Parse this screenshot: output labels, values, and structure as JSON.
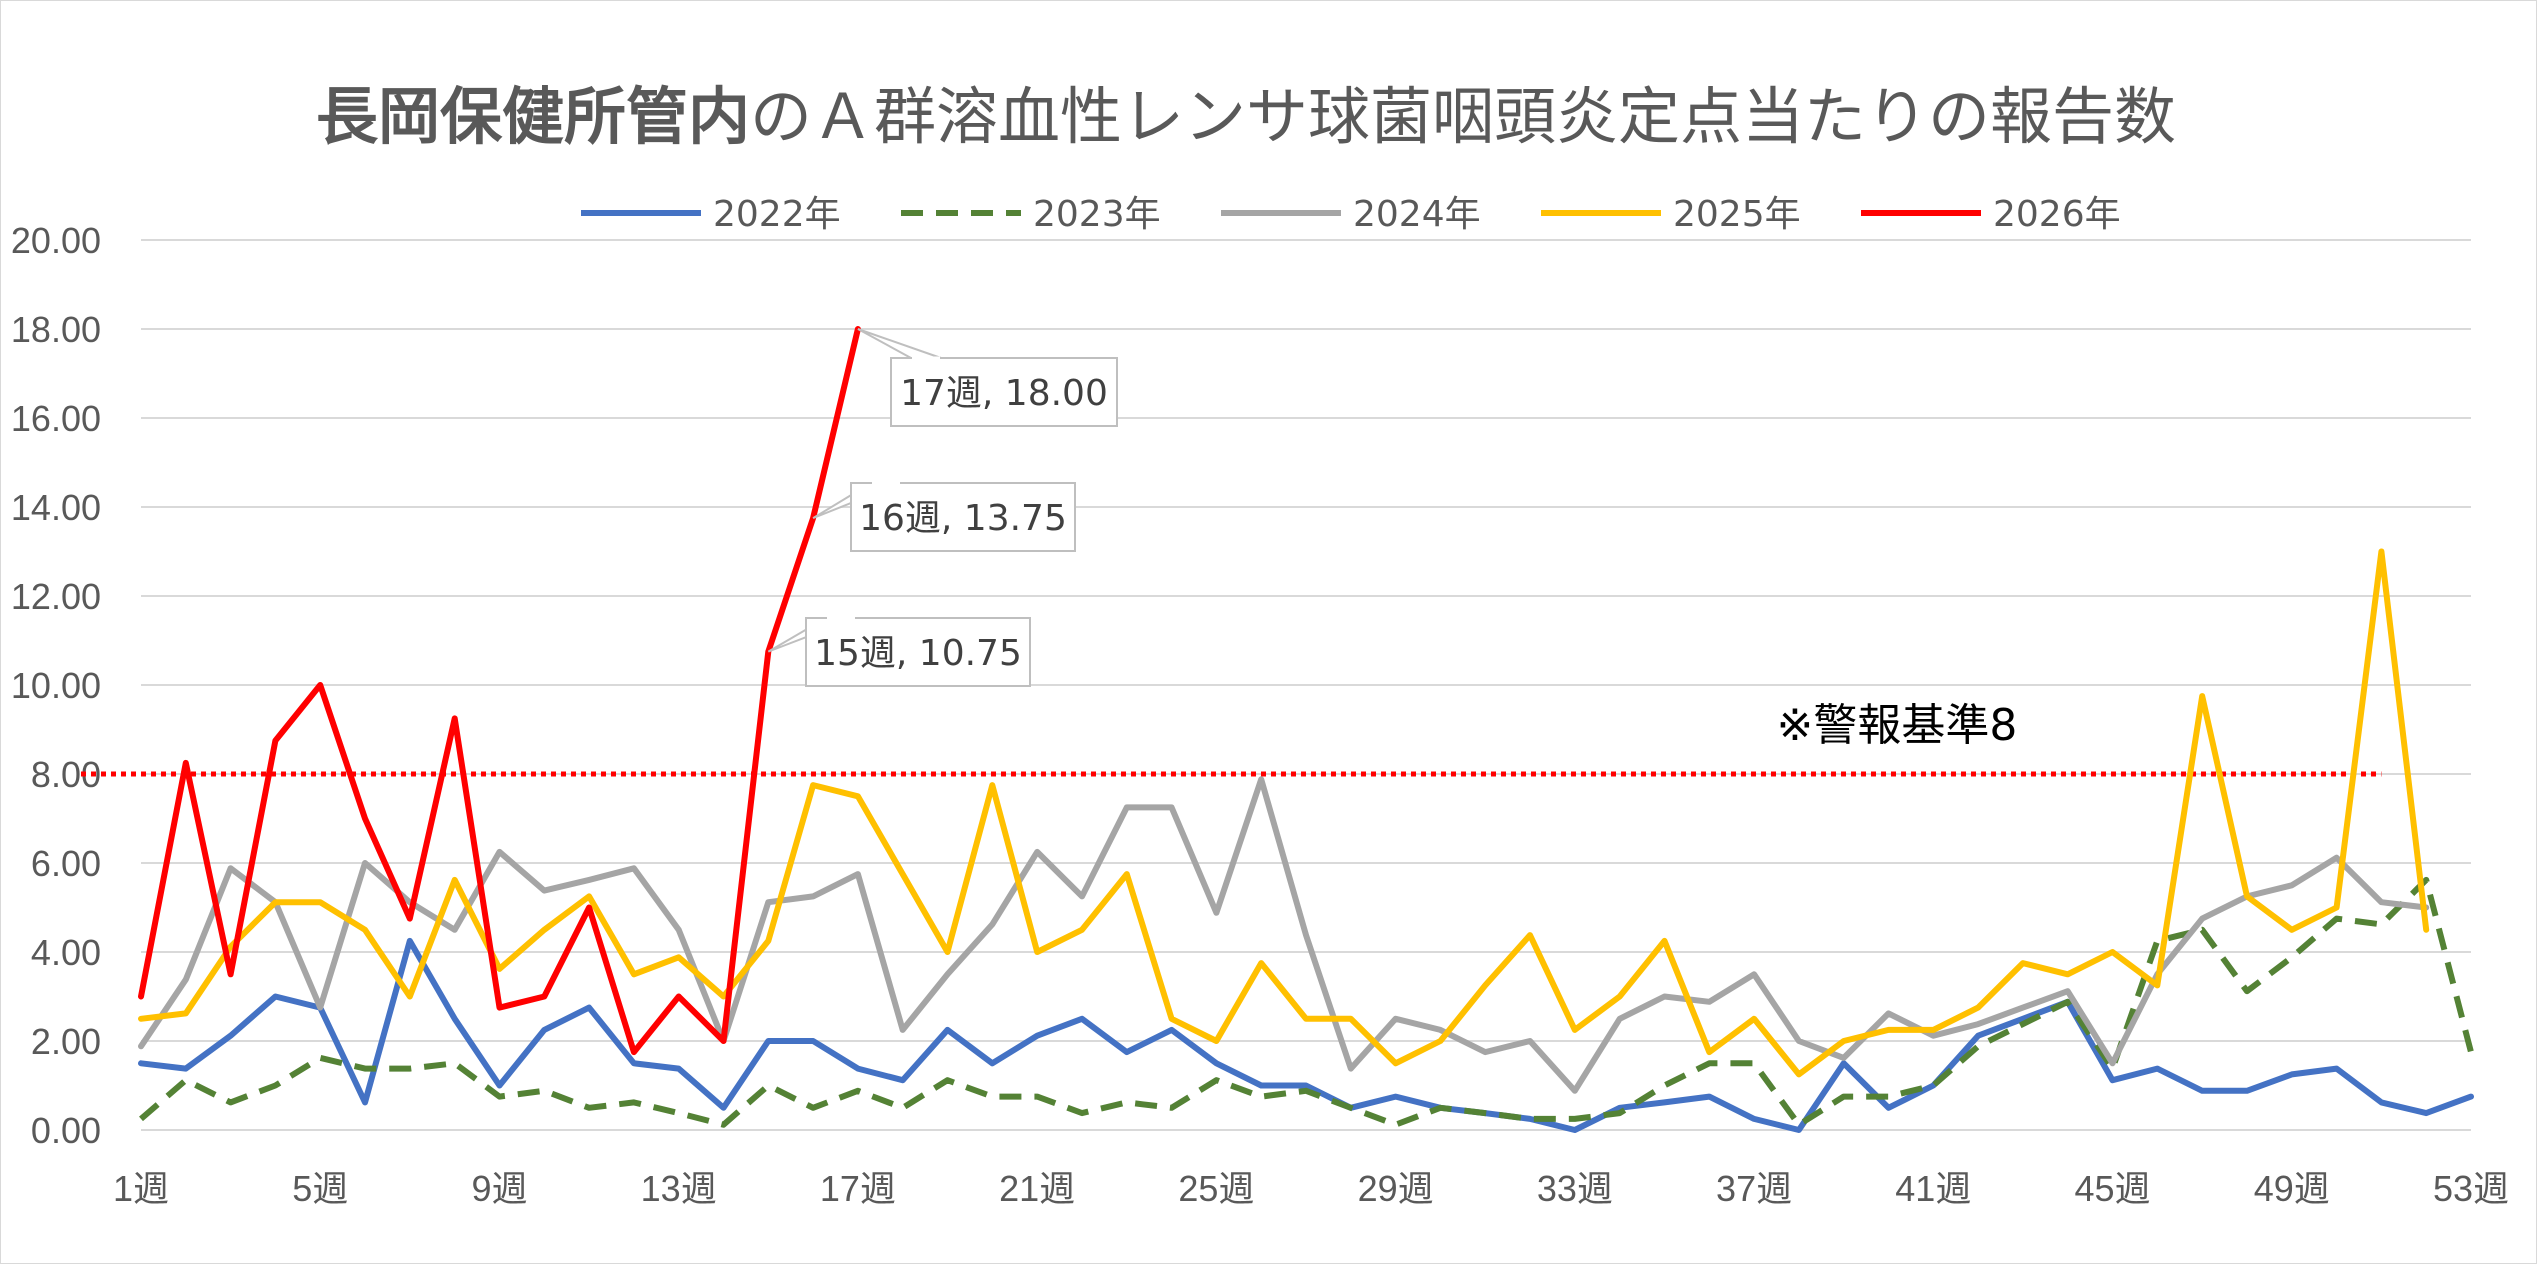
{
  "chart_data": {
    "type": "line",
    "title_bold": "長岡保健所管内",
    "title_rest": "のＡ群溶血性レンサ球菌咽頭炎定点当たりの報告数",
    "xlabel": "",
    "ylabel": "",
    "ylim": [
      0,
      20
    ],
    "yticks": [
      "0.00",
      "2.00",
      "4.00",
      "6.00",
      "8.00",
      "10.00",
      "12.00",
      "14.00",
      "16.00",
      "18.00",
      "20.00"
    ],
    "xtick_labels": [
      "1週",
      "5週",
      "9週",
      "13週",
      "17週",
      "21週",
      "25週",
      "29週",
      "33週",
      "37週",
      "41週",
      "45週",
      "49週",
      "53週"
    ],
    "xtick_weeks": [
      1,
      5,
      9,
      13,
      17,
      21,
      25,
      29,
      33,
      37,
      41,
      45,
      49,
      53
    ],
    "xlim": [
      1,
      53
    ],
    "grid": true,
    "legend_position": "top",
    "threshold": {
      "value": 8,
      "from_week": 1,
      "to_week": 51,
      "color": "#ff0000",
      "label": "※警報基準8",
      "label_week": 37.5,
      "label_y": 9.1
    },
    "series": [
      {
        "name": "2022年",
        "color": "#4472c4",
        "dash": "solid",
        "values": [
          1.5,
          1.38,
          2.12,
          3.0,
          2.75,
          0.62,
          4.25,
          2.5,
          1.0,
          2.25,
          2.75,
          1.5,
          1.38,
          0.5,
          2.0,
          2.0,
          1.38,
          1.12,
          2.25,
          1.5,
          2.12,
          2.5,
          1.75,
          2.25,
          1.5,
          1.0,
          1.0,
          0.5,
          0.75,
          0.5,
          0.38,
          0.25,
          0.0,
          0.5,
          0.62,
          0.75,
          0.25,
          0.0,
          1.5,
          0.5,
          1.0,
          2.12,
          2.5,
          2.88,
          1.12,
          1.38,
          0.88,
          0.88,
          1.25,
          1.38,
          0.62,
          0.38,
          0.75
        ]
      },
      {
        "name": "2023年",
        "color": "#548235",
        "dash": "dashed",
        "values": [
          0.25,
          1.12,
          0.62,
          1.0,
          1.62,
          1.38,
          1.38,
          1.5,
          0.75,
          0.88,
          0.5,
          0.62,
          0.38,
          0.12,
          1.0,
          0.5,
          0.88,
          0.5,
          1.12,
          0.75,
          0.75,
          0.38,
          0.62,
          0.5,
          1.12,
          0.75,
          0.88,
          0.5,
          0.12,
          0.5,
          0.38,
          0.25,
          0.25,
          0.38,
          1.0,
          1.5,
          1.5,
          0.12,
          0.75,
          0.75,
          1.0,
          1.88,
          2.38,
          2.88,
          1.38,
          4.25,
          4.5,
          3.12,
          3.88,
          4.75,
          4.62,
          5.62,
          1.75
        ]
      },
      {
        "name": "2024年",
        "color": "#a5a5a5",
        "dash": "solid",
        "values": [
          1.88,
          3.38,
          5.88,
          5.12,
          2.75,
          6.0,
          5.12,
          4.5,
          6.25,
          5.38,
          5.62,
          5.88,
          4.5,
          2.0,
          5.12,
          5.25,
          5.75,
          2.25,
          3.5,
          4.62,
          6.25,
          5.25,
          7.25,
          7.25,
          4.88,
          7.88,
          4.38,
          1.38,
          2.5,
          2.25,
          1.75,
          2.0,
          0.88,
          2.5,
          3.0,
          2.88,
          3.5,
          2.0,
          1.62,
          2.62,
          2.12,
          2.38,
          2.75,
          3.12,
          1.5,
          3.5,
          4.75,
          5.25,
          5.5,
          6.12,
          5.12,
          5.0
        ]
      },
      {
        "name": "2025年",
        "color": "#ffc000",
        "dash": "solid",
        "values": [
          2.5,
          2.62,
          4.12,
          5.12,
          5.12,
          4.5,
          3.0,
          5.62,
          3.62,
          4.5,
          5.25,
          3.5,
          3.88,
          3.0,
          4.25,
          7.75,
          7.5,
          5.75,
          4.0,
          7.75,
          4.0,
          4.5,
          5.75,
          2.5,
          2.0,
          3.75,
          2.5,
          2.5,
          1.5,
          2.0,
          3.25,
          4.38,
          2.25,
          3.0,
          4.25,
          1.75,
          2.5,
          1.25,
          2.0,
          2.25,
          2.25,
          2.75,
          3.75,
          3.5,
          4.0,
          3.25,
          9.75,
          5.25,
          4.5,
          5.0,
          13.0,
          4.5
        ]
      },
      {
        "name": "2026年",
        "color": "#ff0000",
        "dash": "solid",
        "values": [
          3.0,
          8.25,
          3.5,
          8.75,
          10.0,
          7.0,
          4.75,
          9.25,
          2.75,
          3.0,
          5.0,
          1.75,
          3.0,
          2.0,
          10.75,
          13.75,
          18.0
        ]
      }
    ],
    "annotations": [
      {
        "series": "2026年",
        "week": 17,
        "label": "17週, 18.00"
      },
      {
        "series": "2026年",
        "week": 16,
        "label": "16週, 13.75"
      },
      {
        "series": "2026年",
        "week": 15,
        "label": "15週, 10.75"
      }
    ]
  }
}
